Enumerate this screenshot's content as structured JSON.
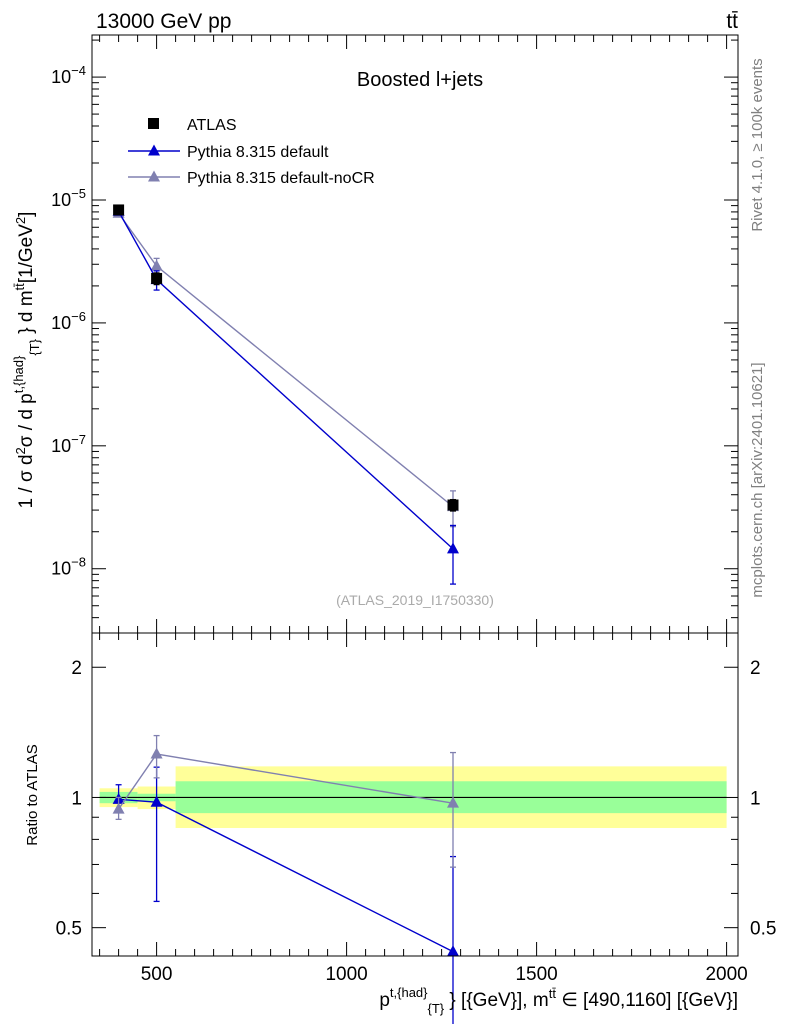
{
  "header": {
    "left_label": "13000 GeV pp",
    "right_label": "tt̄"
  },
  "side_labels": {
    "rivet": "Rivet 4.1.0, ≥ 100k events",
    "mcplots": "mcplots.cern.ch [arXiv:2401.10621]"
  },
  "colors": {
    "atlas": "#000000",
    "default": "#0000cc",
    "nocr": "#8080b0",
    "band_inner": "#99ff99",
    "band_outer": "#ffff99"
  },
  "chart_data": [
    {
      "type": "line",
      "title": "Boosted l+jets",
      "watermark": "(ATLAS_2019_I1750330)",
      "xlabel": "p^{t,{had}}_{T} [{GeV}], m^{tt̄} ∈ [490,1160] [{GeV}]",
      "ylabel": "1 / σ d²σ / d p^{t,{had}}_{T} d m^{tt̄} [1/GeV²]",
      "yscale": "log",
      "xlim": [
        330,
        2030
      ],
      "ylim": [
        3e-09,
        0.00022
      ],
      "x_ticks": [
        500,
        1000,
        1500,
        2000
      ],
      "y_ticks": [
        {
          "value": 1e-08,
          "label": "10^-8"
        },
        {
          "value": 1e-07,
          "label": "10^-7"
        },
        {
          "value": 1e-06,
          "label": "10^-6"
        },
        {
          "value": 1e-05,
          "label": "10^-5"
        },
        {
          "value": 0.0001,
          "label": "10^-4"
        }
      ],
      "legend": [
        "ATLAS",
        "Pythia 8.315 default",
        "Pythia 8.315 default-noCR"
      ],
      "series": [
        {
          "name": "ATLAS",
          "marker": "square",
          "x": [
            400,
            500,
            1280
          ],
          "y": [
            8.3e-06,
            2.3e-06,
            3.3e-08
          ],
          "err_lo": [
            6e-07,
            2.5e-07,
            3.5e-09
          ],
          "err_hi": [
            6e-07,
            2.5e-07,
            3.5e-09
          ]
        },
        {
          "name": "Pythia 8.315 default",
          "marker": "triangle",
          "x": [
            400,
            500,
            1280
          ],
          "y": [
            8.1e-06,
            2.25e-06,
            1.45e-08
          ],
          "err_lo": [
            4e-07,
            4e-07,
            7e-09
          ],
          "err_hi": [
            4e-07,
            4e-07,
            8e-09
          ]
        },
        {
          "name": "Pythia 8.315 default-noCR",
          "marker": "triangle",
          "x": [
            400,
            500,
            1280
          ],
          "y": [
            7.8e-06,
            2.9e-06,
            3.2e-08
          ],
          "err_lo": [
            4e-07,
            4.5e-07,
            1e-08
          ],
          "err_hi": [
            4e-07,
            4.5e-07,
            1.1e-08
          ]
        }
      ]
    },
    {
      "type": "line",
      "ylabel": "Ratio to ATLAS",
      "yscale": "log",
      "xlim": [
        330,
        2030
      ],
      "ylim": [
        0.43,
        2.4
      ],
      "y_ticks": [
        {
          "value": 0.5,
          "label": "0.5"
        },
        {
          "value": 1,
          "label": "1"
        },
        {
          "value": 2,
          "label": "2"
        }
      ],
      "x_ticks": [
        500,
        1000,
        1500,
        2000
      ],
      "bands": [
        {
          "x0": 350,
          "x1": 450,
          "inner": [
            0.97,
            1.03
          ],
          "outer": [
            0.95,
            1.05
          ]
        },
        {
          "x0": 450,
          "x1": 550,
          "inner": [
            0.98,
            1.02
          ],
          "outer": [
            0.94,
            1.06
          ]
        },
        {
          "x0": 550,
          "x1": 2000,
          "inner": [
            0.92,
            1.09
          ],
          "outer": [
            0.85,
            1.18
          ]
        }
      ],
      "series": [
        {
          "name": "Pythia 8.315 default",
          "x": [
            400,
            500,
            1280
          ],
          "y": [
            0.99,
            0.975,
            0.44
          ],
          "err_lo": [
            0.06,
            0.4,
            0.2
          ],
          "err_hi": [
            0.08,
            0.2,
            0.29
          ]
        },
        {
          "name": "Pythia 8.315 default-noCR",
          "x": [
            400,
            500,
            1280
          ],
          "y": [
            0.94,
            1.26,
            0.97
          ],
          "err_lo": [
            0.05,
            0.15,
            0.28
          ],
          "err_hi": [
            0.06,
            0.13,
            0.3
          ]
        }
      ]
    }
  ]
}
